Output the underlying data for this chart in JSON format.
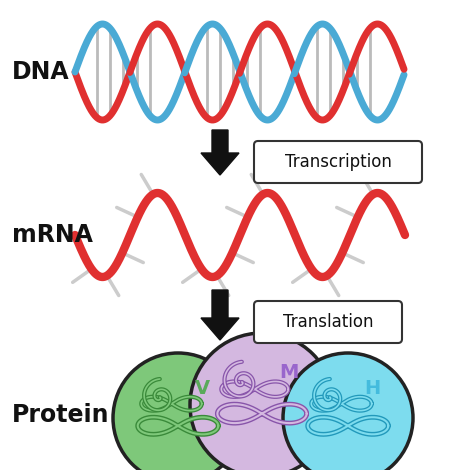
{
  "bg_color": "#ffffff",
  "dna_color1": "#e03030",
  "dna_color2": "#4aaad5",
  "mrna_color": "#e03030",
  "protein_colors": [
    "#7ec87a",
    "#d4b8e0",
    "#7ddcee"
  ],
  "protein_outline_colors": [
    "#3a8a3a",
    "#8855aa",
    "#2299bb"
  ],
  "protein_labels": [
    "V",
    "M",
    "H"
  ],
  "protein_label_colors": [
    "#5aaa5a",
    "#9966cc",
    "#44bbdd"
  ],
  "label_dna": "DNA",
  "label_mrna": "mRNA",
  "label_protein": "Protein",
  "label_transcription": "Transcription",
  "label_translation": "Translation",
  "arrow_color": "#111111",
  "rung_color": "#bbbbbb",
  "tick_color": "#cccccc",
  "label_fontsize": 17,
  "step_fontsize": 12,
  "protein_label_fontsize": 14,
  "figsize": [
    4.74,
    4.7
  ],
  "dpi": 100
}
